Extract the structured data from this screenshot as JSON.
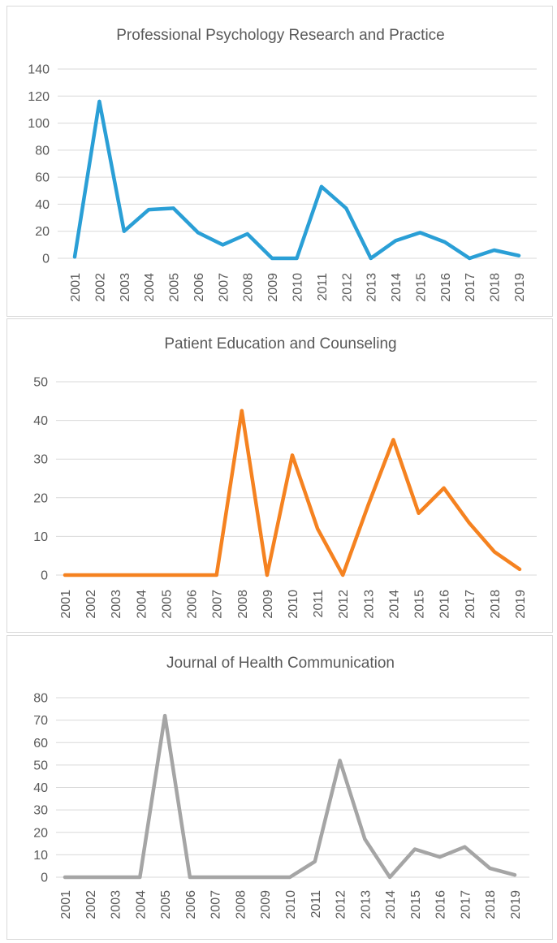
{
  "chart_data": [
    {
      "type": "line",
      "title": "Professional Psychology Research and Practice",
      "color": "#2a9fd6",
      "categories": [
        "2001",
        "2002",
        "2003",
        "2004",
        "2005",
        "2006",
        "2007",
        "2008",
        "2009",
        "2010",
        "2011",
        "2012",
        "2013",
        "2014",
        "2015",
        "2016",
        "2017",
        "2018",
        "2019"
      ],
      "values": [
        1,
        116,
        20,
        36,
        37,
        19,
        10,
        18,
        0,
        0,
        53,
        37,
        0,
        13,
        19,
        12,
        0,
        6,
        2
      ],
      "yticks": [
        0,
        20,
        40,
        60,
        80,
        100,
        120,
        140
      ],
      "ylim": [
        0,
        140
      ],
      "xlabel": "",
      "ylabel": "",
      "grid": true,
      "legend": "none"
    },
    {
      "type": "line",
      "title": "Patient Education and Counseling",
      "color": "#f58220",
      "categories": [
        "2001",
        "2002",
        "2003",
        "2004",
        "2005",
        "2006",
        "2007",
        "2008",
        "2009",
        "2010",
        "2011",
        "2012",
        "2013",
        "2014",
        "2015",
        "2016",
        "2017",
        "2018",
        "2019"
      ],
      "values": [
        0,
        0,
        0,
        0,
        0,
        0,
        0,
        42.5,
        0,
        31,
        12,
        0,
        18,
        35,
        16,
        22.5,
        13.5,
        6,
        1.5
      ],
      "yticks": [
        0,
        10,
        20,
        30,
        40,
        50
      ],
      "ylim": [
        0,
        50
      ],
      "xlabel": "",
      "ylabel": "",
      "grid": true,
      "legend": "none"
    },
    {
      "type": "line",
      "title": "Journal of Health Communication",
      "color": "#a5a5a5",
      "categories": [
        "2001",
        "2002",
        "2003",
        "2004",
        "2005",
        "2006",
        "2007",
        "2008",
        "2009",
        "2010",
        "2011",
        "2012",
        "2013",
        "2014",
        "2015",
        "2016",
        "2017",
        "2018",
        "2019"
      ],
      "values": [
        0,
        0,
        0,
        0,
        72,
        0,
        0,
        0,
        0,
        0,
        7,
        52,
        17,
        0,
        12.5,
        9,
        13.5,
        4,
        1
      ],
      "yticks": [
        0,
        10,
        20,
        30,
        40,
        50,
        60,
        70,
        80
      ],
      "ylim": [
        0,
        80
      ],
      "xlabel": "",
      "ylabel": "",
      "grid": true,
      "legend": "none"
    }
  ]
}
